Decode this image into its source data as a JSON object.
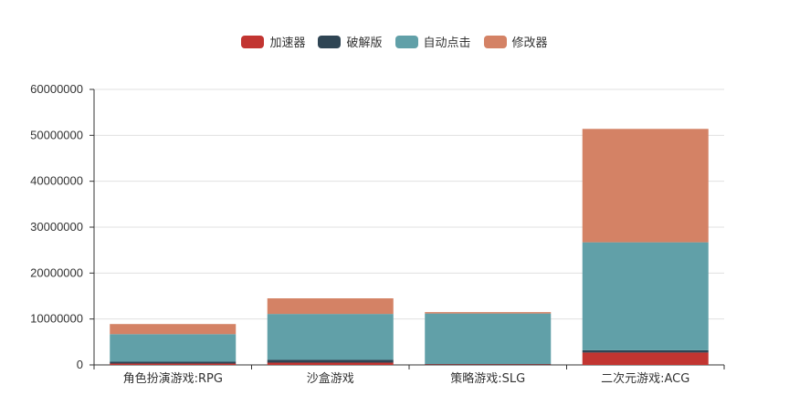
{
  "chart_data": {
    "type": "bar",
    "stacked": true,
    "title": "",
    "xlabel": "",
    "ylabel": "",
    "categories": [
      "角色扮演游戏:RPG",
      "沙盒游戏",
      "策略游戏:SLG",
      "二次元游戏:ACG"
    ],
    "series": [
      {
        "name": "加速器",
        "color": "#c23531",
        "values": [
          300000,
          500000,
          100000,
          2700000
        ]
      },
      {
        "name": "破解版",
        "color": "#2f4554",
        "values": [
          400000,
          600000,
          100000,
          500000
        ]
      },
      {
        "name": "自动点击",
        "color": "#61a0a8",
        "values": [
          6000000,
          10000000,
          11000000,
          23500000
        ]
      },
      {
        "name": "修改器",
        "color": "#d48265",
        "values": [
          2200000,
          3400000,
          300000,
          24700000
        ]
      }
    ],
    "ylim": [
      0,
      60000000
    ],
    "yticks": [
      0,
      10000000,
      20000000,
      30000000,
      40000000,
      50000000,
      60000000
    ],
    "ytick_labels": [
      "0",
      "10000000",
      "20000000",
      "30000000",
      "40000000",
      "50000000",
      "60000000"
    ],
    "grid": true,
    "legend_position": "top-center"
  }
}
